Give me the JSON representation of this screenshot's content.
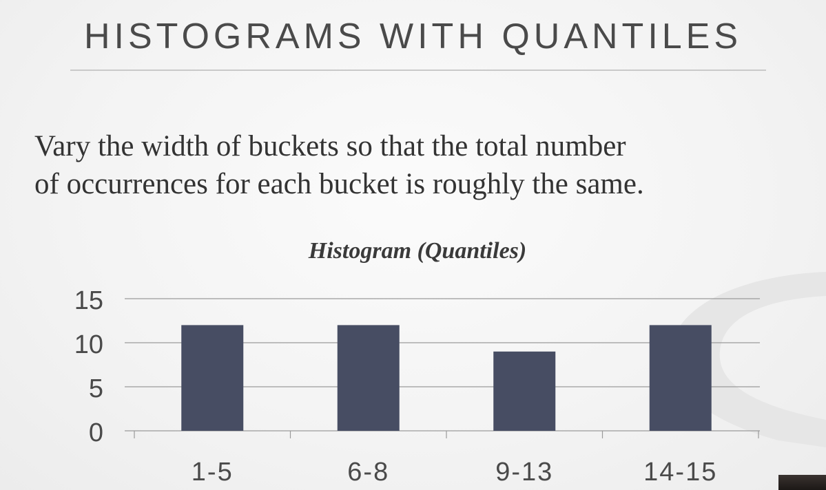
{
  "slide": {
    "title": "HISTOGRAMS WITH QUANTILES",
    "body_line1": "Vary the width of buckets so that the total number",
    "body_line2": "of occurrences for each bucket is roughly the same."
  },
  "colors": {
    "bar": "#474d63",
    "grid": "#9a9a9a",
    "axis_text": "#4a4a4a",
    "title_text": "#3a3a3a"
  },
  "chart_data": {
    "type": "bar",
    "title": "Histogram (Quantiles)",
    "categories": [
      "1-5",
      "6-8",
      "9-13",
      "14-15"
    ],
    "values": [
      12,
      12,
      9,
      12
    ],
    "ylim": [
      0,
      15
    ],
    "yticks": [
      0,
      5,
      10,
      15
    ],
    "grid": true,
    "legend": "none"
  }
}
